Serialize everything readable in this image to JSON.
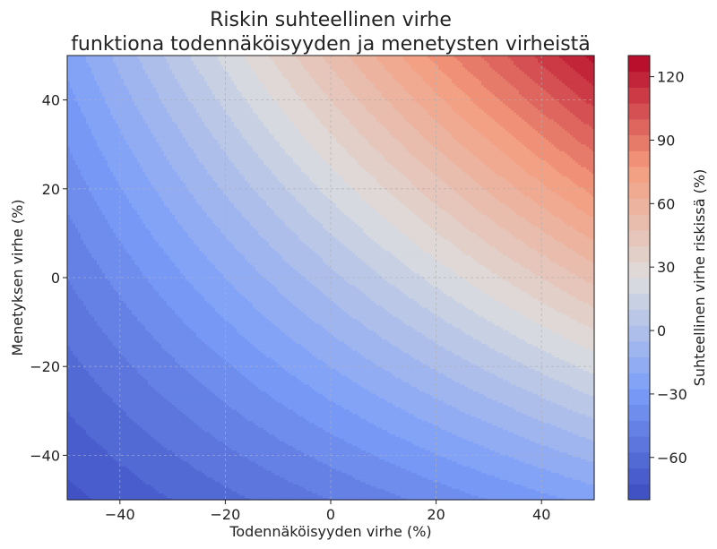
{
  "chart_data": {
    "type": "heatmap",
    "title_line1": "Riskin suhteellinen virhe",
    "title_line2": "funktiona todennäköisyyden ja menetysten virheistä",
    "xlabel": "Todennäköisyyden virhe (%)",
    "ylabel": "Menetyksen virhe (%)",
    "colorbar_label": "Suhteellinen virhe riskissä (%)",
    "xlim": [
      -50,
      50
    ],
    "ylim": [
      -50,
      50
    ],
    "xticks": [
      -40,
      -20,
      0,
      20,
      40
    ],
    "yticks": [
      -40,
      -20,
      0,
      20,
      40
    ],
    "xtick_labels": [
      "−40",
      "−20",
      "0",
      "20",
      "40"
    ],
    "ytick_labels": [
      "−40",
      "−20",
      "0",
      "20",
      "40"
    ],
    "colorbar_range": [
      -80,
      130
    ],
    "colorbar_ticks": [
      -60,
      -30,
      0,
      30,
      60,
      90,
      120
    ],
    "colorbar_tick_labels": [
      "−60",
      "−30",
      "0",
      "30",
      "60",
      "90",
      "120"
    ],
    "contour_step": 7.5,
    "formula": "(1 + x/100) * (1 + y/100) - 1",
    "colormap": "coolwarm",
    "grid": true
  }
}
